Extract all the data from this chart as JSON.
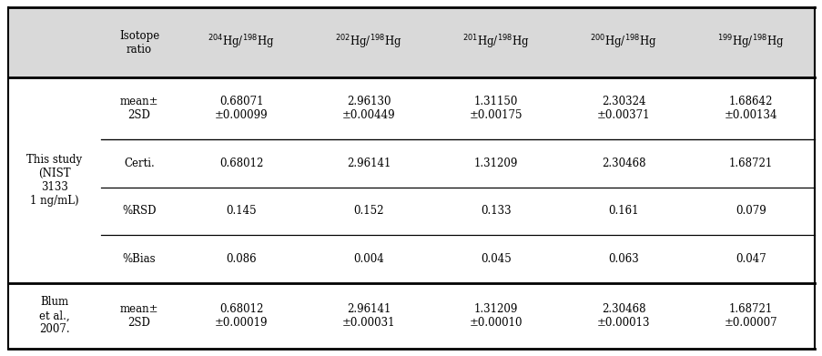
{
  "header_col1": "",
  "header_col2": "Isotope\nratio",
  "header_cols": [
    "$^{204}$Hg/$^{198}$Hg",
    "$^{202}$Hg/$^{198}$Hg",
    "$^{201}$Hg/$^{198}$Hg",
    "$^{200}$Hg/$^{198}$Hg",
    "$^{199}$Hg/$^{198}$Hg"
  ],
  "row_group1_label": "This study\n(NIST\n3133\n1 ng/mL)",
  "row_group2_label": "Blum\net al.,\n2007.",
  "rows_group1": [
    {
      "label": "mean±\n2SD",
      "values": [
        "0.68071\n±0.00099",
        "2.96130\n±0.00449",
        "1.31150\n±0.00175",
        "2.30324\n±0.00371",
        "1.68642\n±0.00134"
      ]
    },
    {
      "label": "Certi.",
      "values": [
        "0.68012",
        "2.96141",
        "1.31209",
        "2.30468",
        "1.68721"
      ]
    },
    {
      "label": "%RSD",
      "values": [
        "0.145",
        "0.152",
        "0.133",
        "0.161",
        "0.079"
      ]
    },
    {
      "label": "%Bias",
      "values": [
        "0.086",
        "0.004",
        "0.045",
        "0.063",
        "0.047"
      ]
    }
  ],
  "rows_group2": [
    {
      "label": "mean±\n2SD",
      "values": [
        "0.68012\n±0.00019",
        "2.96141\n±0.00031",
        "1.31209\n±0.00010",
        "2.30468\n±0.00013",
        "1.68721\n±0.00007"
      ]
    }
  ],
  "bg_header": "#d9d9d9",
  "bg_white": "#ffffff",
  "line_color": "#000000",
  "font_size": 8.5,
  "header_font_size": 8.5
}
